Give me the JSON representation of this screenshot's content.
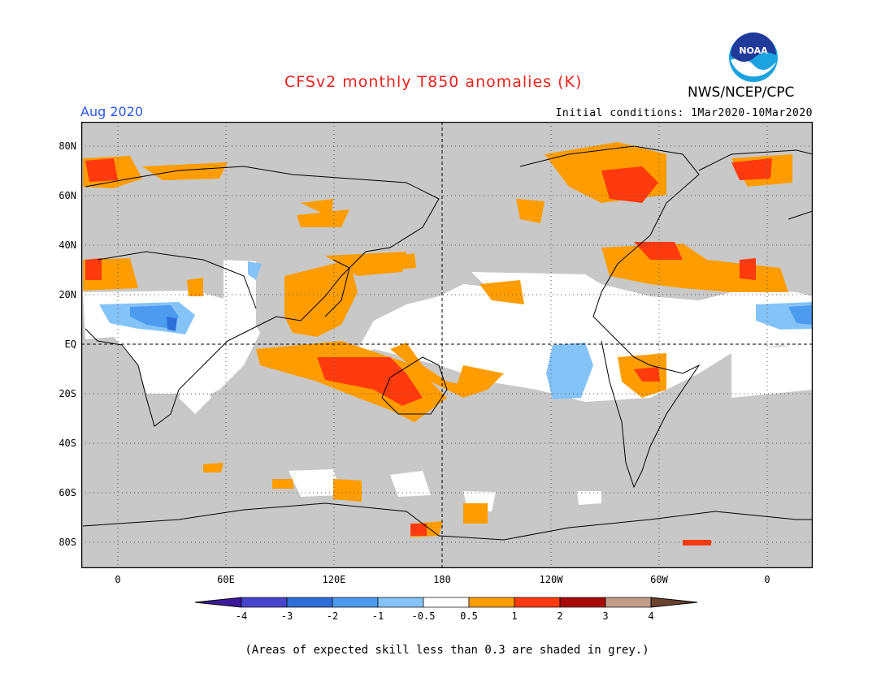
{
  "header": {
    "title": "CFSv2 monthly T850 anomalies (K)",
    "agency": "NWS/NCEP/CPC",
    "logo_text": "NOAA",
    "month": "Aug 2020",
    "initial_conditions": "Initial conditions: 1Mar2020-10Mar2020"
  },
  "axes": {
    "lat_labels": [
      "80N",
      "60N",
      "40N",
      "20N",
      "EQ",
      "20S",
      "40S",
      "60S",
      "80S"
    ],
    "lon_labels": [
      "0",
      "60E",
      "120E",
      "180",
      "120W",
      "60W",
      "0"
    ]
  },
  "colorbar": {
    "tick_labels": [
      "-4",
      "-3",
      "-2",
      "-1",
      "-0.5",
      "0.5",
      "1",
      "2",
      "3",
      "4"
    ],
    "colors": [
      "#3c1a9c",
      "#4a44cc",
      "#2f6fd8",
      "#4d9bef",
      "#84c3f7",
      "#ffffff",
      "#ff9d00",
      "#ff3a0d",
      "#a80a0a",
      "#c29b8b",
      "#6b4230"
    ]
  },
  "colors": {
    "land_background": "#c0c0c0",
    "skill_mask": "#c8c8c8",
    "title": "#e8221c",
    "month": "#2a56e6"
  },
  "footnote": "(Areas of expected skill less than 0.3 are shaded in grey.)"
}
